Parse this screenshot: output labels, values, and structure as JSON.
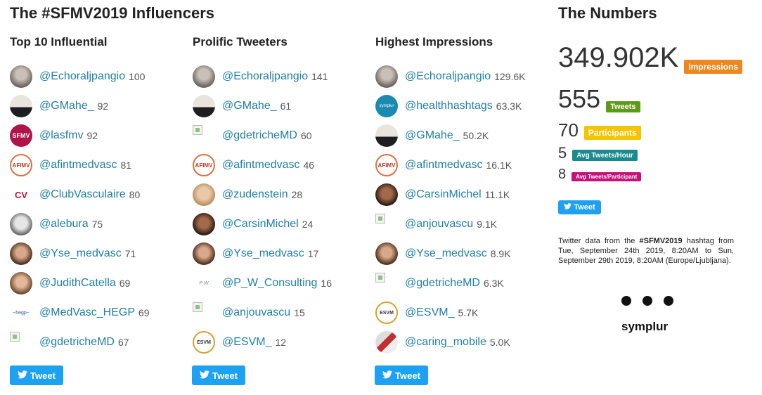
{
  "main_title": "The #SFMV2019 Influencers",
  "numbers_title": "The Numbers",
  "columns": [
    {
      "heading": "Top 10 Influential",
      "rows": [
        {
          "handle": "@Echoraljpangio",
          "value": "100",
          "avatar": "photo-gray"
        },
        {
          "handle": "@GMahe_",
          "value": "92",
          "avatar": "photo-suit"
        },
        {
          "handle": "@lasfmv",
          "value": "92",
          "avatar": "logo-sfmv"
        },
        {
          "handle": "@afintmedvasc",
          "value": "81",
          "avatar": "logo-afimv"
        },
        {
          "handle": "@ClubVasculaire",
          "value": "80",
          "avatar": "logo-cv"
        },
        {
          "handle": "@alebura",
          "value": "75",
          "avatar": "photo-bw"
        },
        {
          "handle": "@Yse_medvasc",
          "value": "71",
          "avatar": "photo-woman"
        },
        {
          "handle": "@JudithCatella",
          "value": "69",
          "avatar": "photo-woman2"
        },
        {
          "handle": "@MedVasc_HEGP",
          "value": "69",
          "avatar": "logo-hegp"
        },
        {
          "handle": "@gdetricheMD",
          "value": "67",
          "avatar": "broken"
        }
      ],
      "tweet_label": "Tweet"
    },
    {
      "heading": "Prolific Tweeters",
      "rows": [
        {
          "handle": "@Echoraljpangio",
          "value": "141",
          "avatar": "photo-gray"
        },
        {
          "handle": "@GMahe_",
          "value": "61",
          "avatar": "photo-suit"
        },
        {
          "handle": "@gdetricheMD",
          "value": "60",
          "avatar": "broken"
        },
        {
          "handle": "@afintmedvasc",
          "value": "46",
          "avatar": "logo-afimv"
        },
        {
          "handle": "@zudenstein",
          "value": "28",
          "avatar": "photo-blonde"
        },
        {
          "handle": "@CarsinMichel",
          "value": "24",
          "avatar": "photo-dark"
        },
        {
          "handle": "@Yse_medvasc",
          "value": "17",
          "avatar": "photo-woman"
        },
        {
          "handle": "@P_W_Consulting",
          "value": "16",
          "avatar": "logo-pw"
        },
        {
          "handle": "@anjouvascu",
          "value": "15",
          "avatar": "broken"
        },
        {
          "handle": "@ESVM_",
          "value": "12",
          "avatar": "logo-esvm"
        }
      ],
      "tweet_label": "Tweet"
    },
    {
      "heading": "Highest Impressions",
      "rows": [
        {
          "handle": "@Echoraljpangio",
          "value": "129.6K",
          "avatar": "photo-gray"
        },
        {
          "handle": "@healthhashtags",
          "value": "63.3K",
          "avatar": "logo-symplur"
        },
        {
          "handle": "@GMahe_",
          "value": "50.2K",
          "avatar": "photo-suit"
        },
        {
          "handle": "@afintmedvasc",
          "value": "16.1K",
          "avatar": "logo-afimv"
        },
        {
          "handle": "@CarsinMichel",
          "value": "11.1K",
          "avatar": "photo-dark"
        },
        {
          "handle": "@anjouvascu",
          "value": "9.1K",
          "avatar": "broken"
        },
        {
          "handle": "@Yse_medvasc",
          "value": "8.9K",
          "avatar": "photo-woman"
        },
        {
          "handle": "@gdetricheMD",
          "value": "6.3K",
          "avatar": "broken"
        },
        {
          "handle": "@ESVM_",
          "value": "5.7K",
          "avatar": "logo-esvm"
        },
        {
          "handle": "@caring_mobile",
          "value": "5.0K",
          "avatar": "logo-phone"
        }
      ],
      "tweet_label": "Tweet"
    }
  ],
  "numbers": [
    {
      "value": "349.902K",
      "label": "Impressions",
      "color": "#f0861e"
    },
    {
      "value": "555",
      "label": "Tweets",
      "color": "#5e9a1a"
    },
    {
      "value": "70",
      "label": "Participants",
      "color": "#f5c400"
    },
    {
      "value": "5",
      "label": "Avg Tweets/Hour",
      "color": "#1b8a8f"
    },
    {
      "value": "8",
      "label": "Avg Tweets/Participant",
      "color": "#c4127a"
    }
  ],
  "numbers_tweet_label": "Tweet",
  "description": {
    "prefix": "Twitter data from the ",
    "hashtag": "#SFMV2019",
    "suffix": " hashtag from Tue, September 24th 2019, 8:20AM to Sun, September 29th 2019, 8:20AM (Europe/Ljubljana)."
  },
  "brand": "symplur"
}
